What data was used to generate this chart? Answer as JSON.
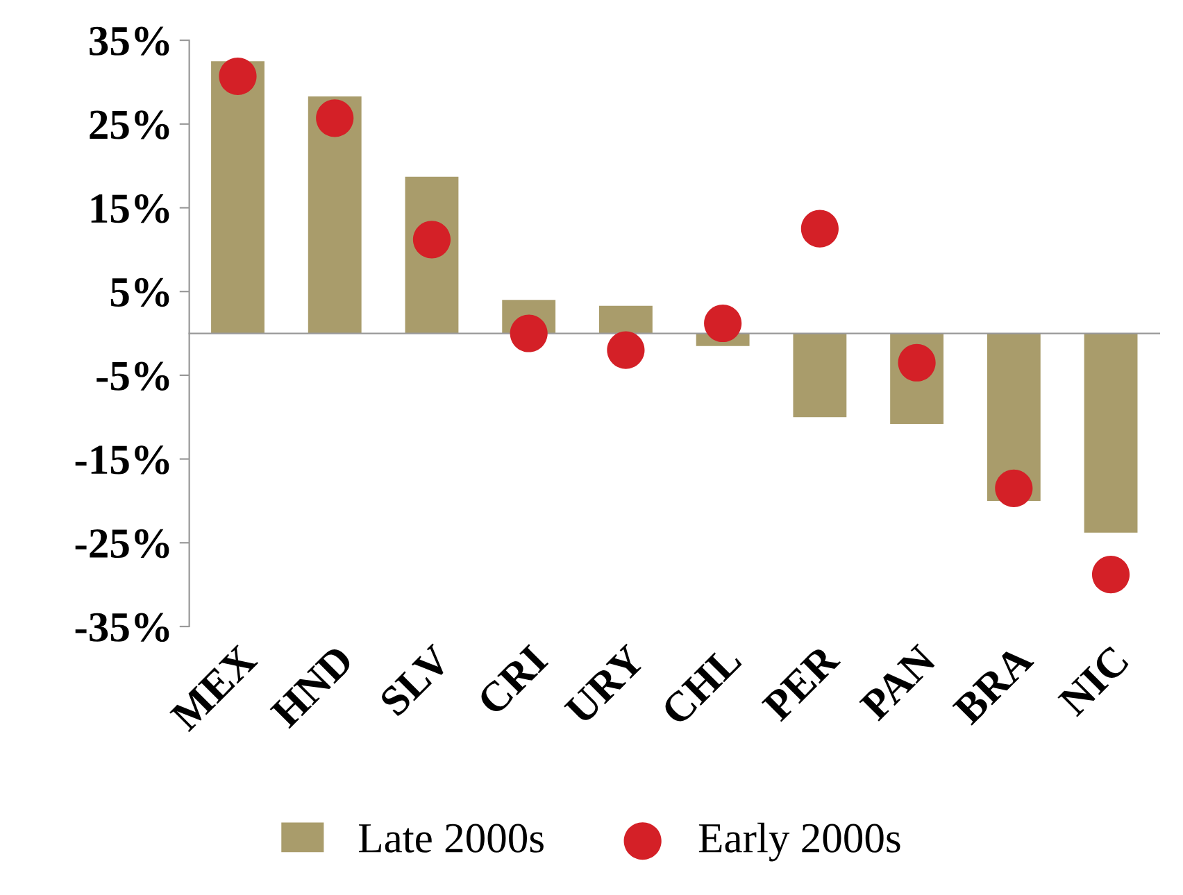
{
  "chart_data": {
    "type": "bar",
    "categories": [
      "MEX",
      "HND",
      "SLV",
      "CRI",
      "URY",
      "CHL",
      "PER",
      "PAN",
      "BRA",
      "NIC"
    ],
    "series": [
      {
        "name": "Late 2000s",
        "color": "#a99c6b",
        "values": [
          32.5,
          28.3,
          18.7,
          4.0,
          3.3,
          -1.5,
          -10.0,
          -10.8,
          -20.0,
          -23.8
        ]
      },
      {
        "name": "Early 2000s",
        "type": "scatter",
        "color": "#d42027",
        "marker": "circle",
        "values": [
          30.7,
          25.7,
          11.2,
          0.0,
          -2.0,
          1.2,
          12.5,
          -3.5,
          -18.5,
          -28.8
        ]
      }
    ],
    "ylim": [
      -35,
      35
    ],
    "yticks": [
      {
        "value": -35,
        "label": "-35%"
      },
      {
        "value": -25,
        "label": "-25%"
      },
      {
        "value": -15,
        "label": "-15%"
      },
      {
        "value": -5,
        "label": "-5%"
      },
      {
        "value": 5,
        "label": "5%"
      },
      {
        "value": 15,
        "label": "15%"
      },
      {
        "value": 25,
        "label": "25%"
      },
      {
        "value": 35,
        "label": "35%"
      }
    ],
    "legend": "bottom"
  }
}
